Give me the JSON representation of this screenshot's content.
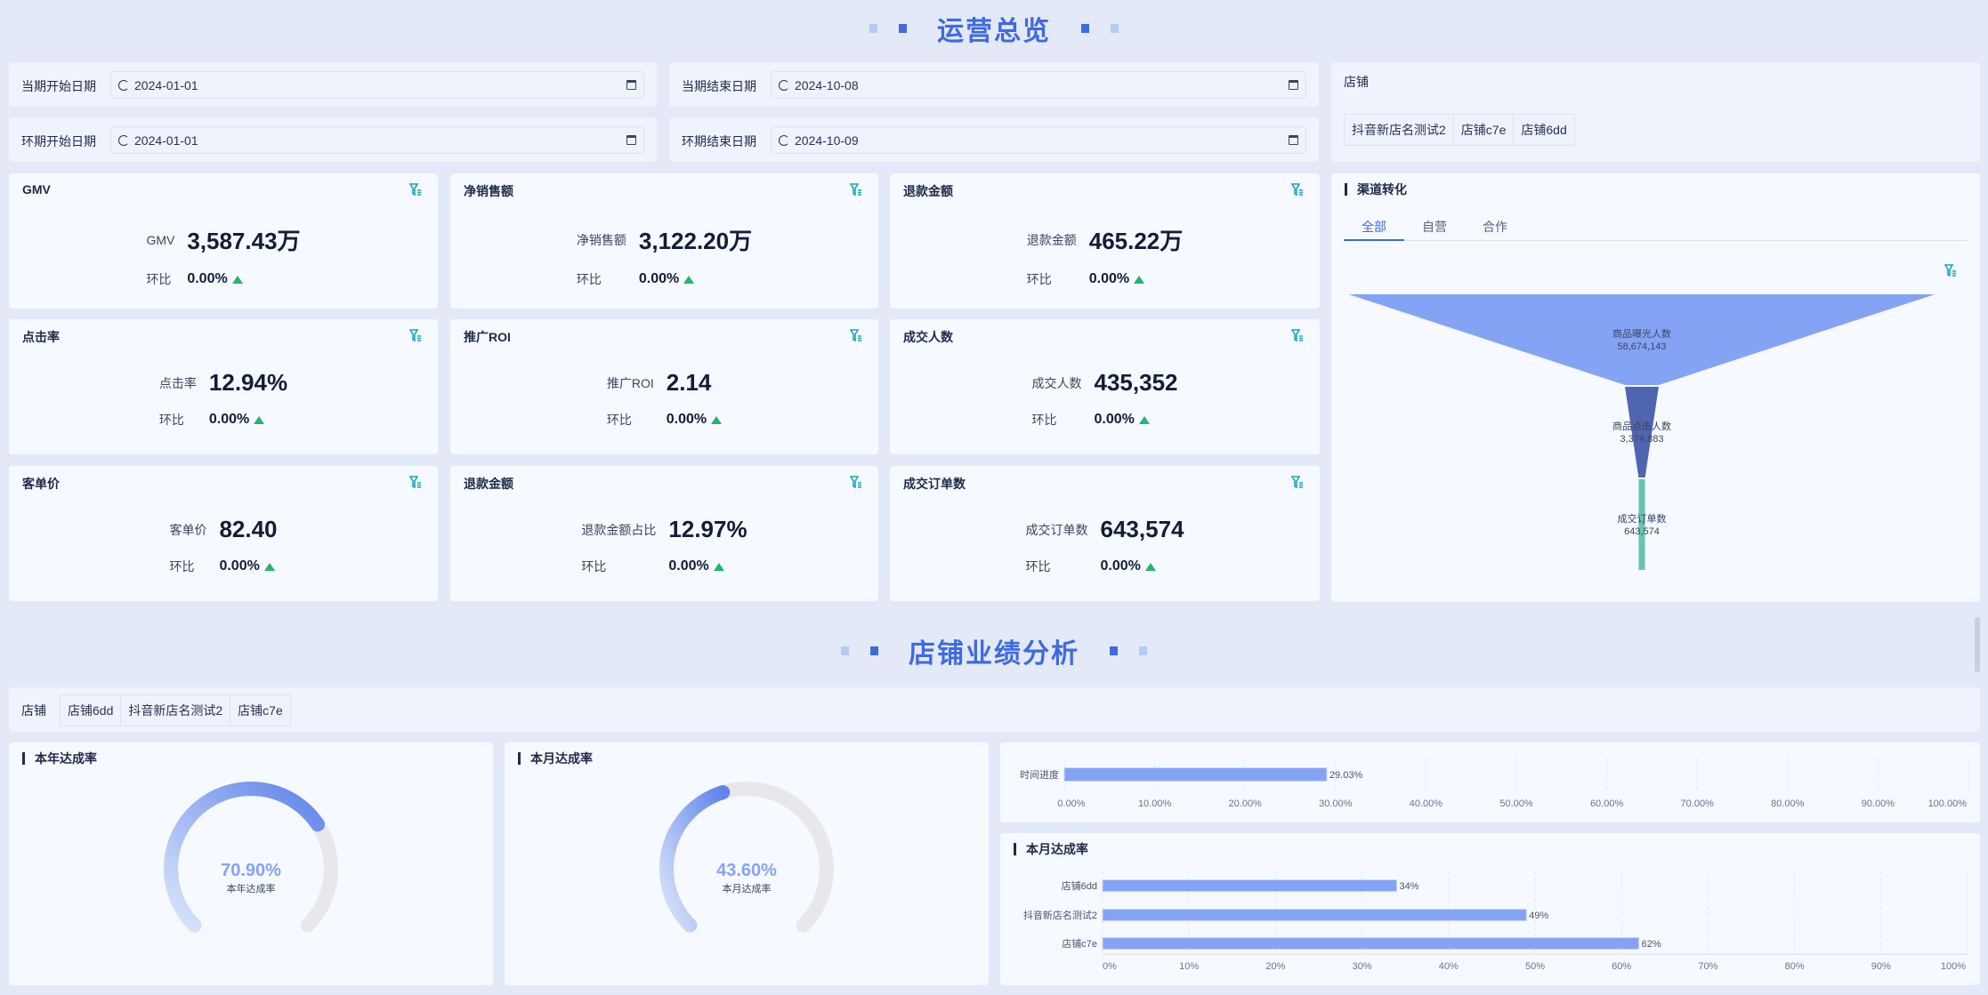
{
  "overview": {
    "title": "运营总览",
    "dates": [
      {
        "label": "当期开始日期",
        "value": "2024-01-01"
      },
      {
        "label": "当期结束日期",
        "value": "2024-10-08"
      },
      {
        "label": "环期开始日期",
        "value": "2024-01-01"
      },
      {
        "label": "环期结束日期",
        "value": "2024-10-09"
      }
    ],
    "store_filter": {
      "label": "店铺",
      "options": [
        "抖音新店名测试2",
        "店铺c7e",
        "店铺6dd"
      ]
    },
    "kpis": [
      {
        "title": "GMV",
        "label": "GMV",
        "value": "3,587.43万",
        "change_label": "环比",
        "change": "0.00%"
      },
      {
        "title": "净销售额",
        "label": "净销售额",
        "value": "3,122.20万",
        "change_label": "环比",
        "change": "0.00%"
      },
      {
        "title": "退款金额",
        "label": "退款金额",
        "value": "465.22万",
        "change_label": "环比",
        "change": "0.00%"
      },
      {
        "title": "点击率",
        "label": "点击率",
        "value": "12.94%",
        "change_label": "环比",
        "change": "0.00%"
      },
      {
        "title": "推广ROI",
        "label": "推广ROI",
        "value": "2.14",
        "change_label": "环比",
        "change": "0.00%"
      },
      {
        "title": "成交人数",
        "label": "成交人数",
        "value": "435,352",
        "change_label": "环比",
        "change": "0.00%"
      },
      {
        "title": "客单价",
        "label": "客单价",
        "value": "82.40",
        "change_label": "环比",
        "change": "0.00%"
      },
      {
        "title": "退款金额",
        "label": "退款金额占比",
        "value": "12.97%",
        "change_label": "环比",
        "change": "0.00%"
      },
      {
        "title": "成交订单数",
        "label": "成交订单数",
        "value": "643,574",
        "change_label": "环比",
        "change": "0.00%"
      }
    ],
    "funnel": {
      "title": "渠道转化",
      "tabs": [
        "全部",
        "自营",
        "合作"
      ],
      "active_tab": 0,
      "stages": [
        {
          "name": "商品曝光人数",
          "value": 58674143,
          "display": "58,674,143",
          "color": "#85a3f5"
        },
        {
          "name": "商品点击人数",
          "value": 3374883,
          "display": "3,374,883",
          "color": "#5065b0"
        },
        {
          "name": "成交订单数",
          "value": 643574,
          "display": "643,574",
          "color": "#6cc3b4"
        }
      ]
    }
  },
  "store_analysis": {
    "title": "店铺业绩分析",
    "store_filter": {
      "label": "店铺",
      "options": [
        "店铺6dd",
        "抖音新店名测试2",
        "店铺c7e"
      ]
    },
    "year_gauge": {
      "title": "本年达成率",
      "value": 70.9,
      "display": "70.90%",
      "caption": "本年达成率"
    },
    "month_gauge": {
      "title": "本月达成率",
      "value": 43.6,
      "display": "43.60%",
      "caption": "本月达成率"
    }
  },
  "chart_data": [
    {
      "type": "bar",
      "orientation": "horizontal",
      "categories": [
        "时间进度"
      ],
      "values": [
        29.03
      ],
      "value_labels": [
        "29.03%"
      ],
      "xlim": [
        0,
        100
      ],
      "xticks": [
        "0.00%",
        "10.00%",
        "20.00%",
        "30.00%",
        "40.00%",
        "50.00%",
        "60.00%",
        "70.00%",
        "80.00%",
        "90.00%",
        "100.00%"
      ],
      "grid": true,
      "color": "#85a3f5"
    },
    {
      "type": "bar",
      "orientation": "horizontal",
      "title": "本月达成率",
      "categories": [
        "店铺6dd",
        "抖音新店名测试2",
        "店铺c7e"
      ],
      "values": [
        34,
        49,
        62
      ],
      "value_labels": [
        "34%",
        "49%",
        "62%"
      ],
      "xlim": [
        0,
        100
      ],
      "xticks": [
        "0%",
        "10%",
        "20%",
        "30%",
        "40%",
        "50%",
        "60%",
        "70%",
        "80%",
        "90%",
        "100%"
      ],
      "grid": true,
      "color": "#85a3f5"
    }
  ]
}
